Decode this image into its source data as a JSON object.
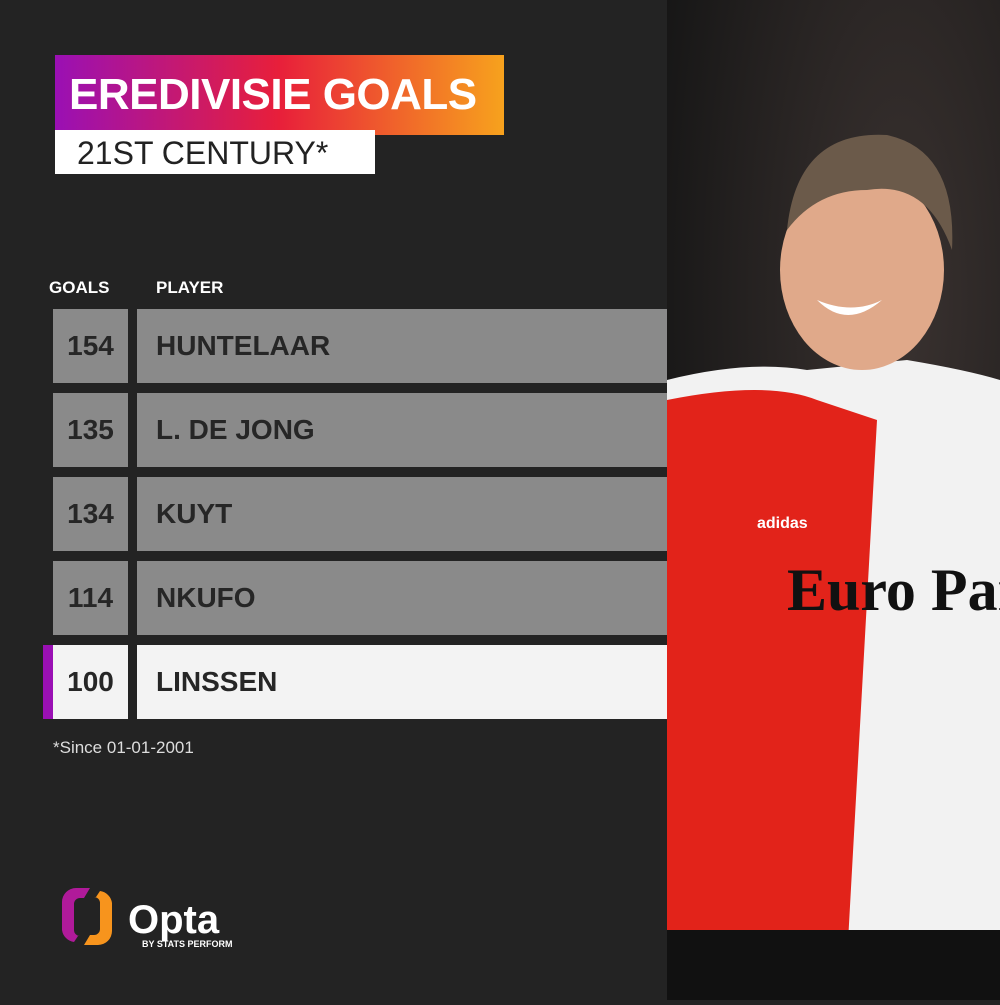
{
  "title": "EREDIVISIE GOALS",
  "subtitle": "21ST CENTURY*",
  "columns": {
    "goals": "GOALS",
    "player": "PLAYER"
  },
  "rows": [
    {
      "goals": "154",
      "player": "HUNTELAAR"
    },
    {
      "goals": "135",
      "player": "L. DE JONG"
    },
    {
      "goals": "134",
      "player": "KUYT"
    },
    {
      "goals": "114",
      "player": "NKUFO"
    },
    {
      "goals": "100",
      "player": "LINSSEN",
      "highlighted": true
    }
  ],
  "footnote": "*Since 01-01-2001",
  "logo": {
    "name": "Opta",
    "tagline": "BY STATS PERFORM"
  },
  "photo": {
    "shirt_sponsor": "Euro Parcs",
    "kit_brand": "adidas"
  },
  "colors": {
    "background": "#232323",
    "row": "#8a8a8a",
    "highlight": "#f3f3f3",
    "accent": "#9a10b4",
    "gradient": [
      "#9a10b4",
      "#e81f3a",
      "#f7a21d"
    ]
  },
  "chart_data": {
    "type": "table",
    "columns": [
      "GOALS",
      "PLAYER"
    ],
    "categories": [
      "HUNTELAAR",
      "L. DE JONG",
      "KUYT",
      "NKUFO",
      "LINSSEN"
    ],
    "values": [
      154,
      135,
      134,
      114,
      100
    ],
    "title": "EREDIVISIE GOALS",
    "subtitle": "21ST CENTURY*"
  }
}
